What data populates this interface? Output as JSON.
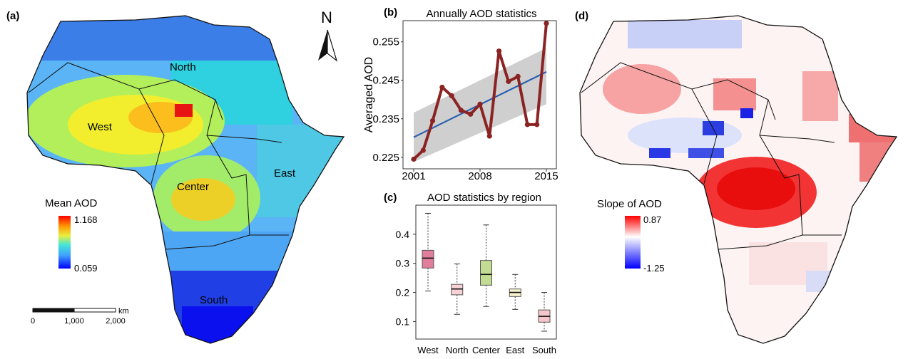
{
  "panels": {
    "a": {
      "label": "(a)",
      "regions": [
        "North",
        "West",
        "Center",
        "East",
        "South"
      ],
      "legend": {
        "title": "Mean AOD",
        "max_label": "1.168",
        "min_label": "0.059"
      },
      "north_label": "N",
      "scale_bar": {
        "unit": "km",
        "ticks": [
          "0",
          "1,000",
          "2,000"
        ]
      }
    },
    "b": {
      "label": "(b)"
    },
    "c": {
      "label": "(c)"
    },
    "d": {
      "label": "(d)",
      "legend": {
        "title": "Slope of AOD",
        "max_label": "0.87",
        "min_label": "-1.25"
      }
    }
  },
  "colors": {
    "line": "#8b2323",
    "trend": "#2b5fb0",
    "band": "#cfcfcf"
  },
  "chart_data": [
    {
      "type": "line",
      "title": "Annually AOD statistics",
      "ylabel": "Averaged AOD",
      "xlabel": "",
      "x": [
        2001,
        2002,
        2003,
        2004,
        2005,
        2006,
        2007,
        2008,
        2009,
        2010,
        2011,
        2012,
        2013,
        2014,
        2015
      ],
      "x_ticks": [
        "2001",
        "2008",
        "2015"
      ],
      "y_ticks": [
        "0.225",
        "0.235",
        "0.245",
        "0.255"
      ],
      "ylim": [
        0.222,
        0.2605
      ],
      "series": [
        {
          "values": [
            0.2245,
            0.2268,
            0.2345,
            0.2432,
            0.241,
            0.2372,
            0.2362,
            0.2388,
            0.2305,
            0.2526,
            0.2447,
            0.246,
            0.2335,
            0.2335,
            0.2598
          ]
        }
      ],
      "trend": {
        "start": 0.2302,
        "end": 0.2472
      },
      "band": {
        "upper_start": 0.2366,
        "upper_end": 0.2534,
        "lower_start": 0.2238,
        "lower_end": 0.2388
      }
    },
    {
      "type": "box",
      "title": "AOD statistics by region",
      "categories": [
        "West",
        "North",
        "Center",
        "East",
        "South"
      ],
      "y_ticks": [
        "0.1",
        "0.2",
        "0.3",
        "0.4"
      ],
      "ylim": [
        0.04,
        0.5
      ],
      "boxes": [
        {
          "min": 0.205,
          "q1": 0.284,
          "median": 0.318,
          "q3": 0.345,
          "max": 0.472,
          "color": "#e07e9c"
        },
        {
          "min": 0.125,
          "q1": 0.192,
          "median": 0.212,
          "q3": 0.228,
          "max": 0.298,
          "color": "#f9d2d7"
        },
        {
          "min": 0.152,
          "q1": 0.225,
          "median": 0.262,
          "q3": 0.31,
          "max": 0.432,
          "color": "#c2dc94"
        },
        {
          "min": 0.142,
          "q1": 0.186,
          "median": 0.2,
          "q3": 0.212,
          "max": 0.262,
          "color": "#f6f2cc"
        },
        {
          "min": 0.067,
          "q1": 0.098,
          "median": 0.118,
          "q3": 0.14,
          "max": 0.2,
          "color": "#f7c6cc"
        }
      ]
    }
  ]
}
